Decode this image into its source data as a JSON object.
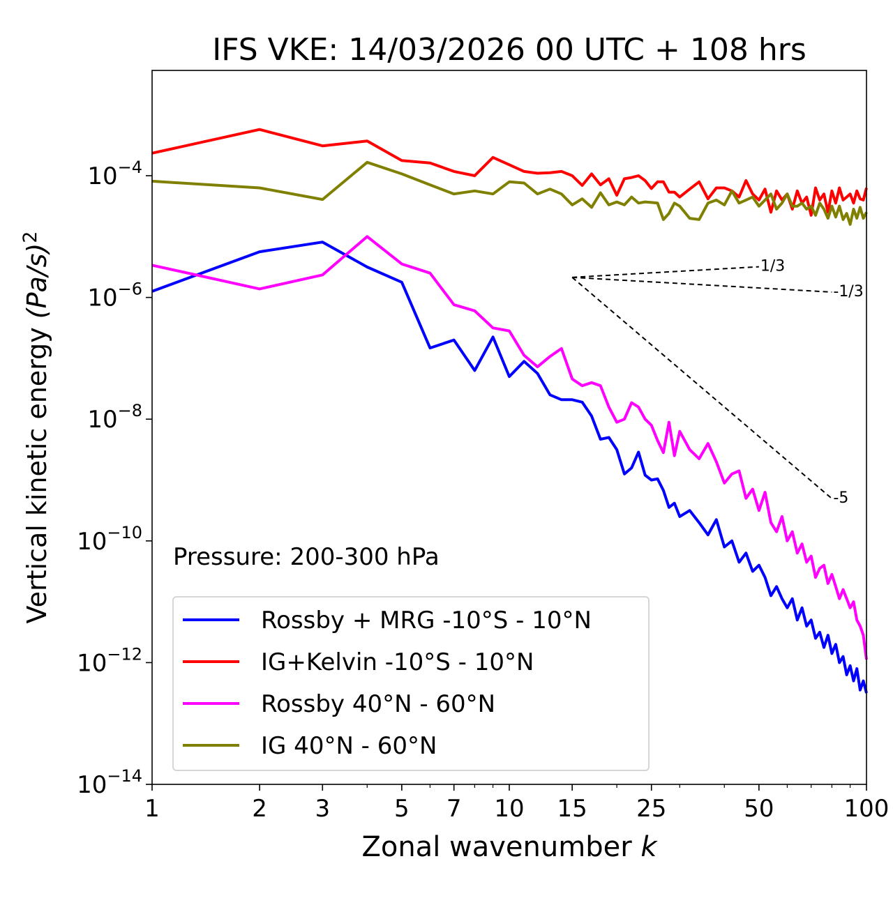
{
  "chart_data": {
    "type": "line",
    "title": "IFS VKE: 14/03/2026 00 UTC + 108 hrs",
    "xlabel": "Zonal wavenumber",
    "xlabel_var": "k",
    "ylabel": "Vertical kinetic energy",
    "ylabel_units": "(Pa/s)",
    "ylabel_power": "2",
    "xscale": "log",
    "yscale": "log",
    "xlim": [
      1,
      100
    ],
    "ylim_log10": [
      -14,
      -2.27
    ],
    "xticks": [
      1,
      2,
      3,
      5,
      7,
      10,
      15,
      25,
      50,
      100
    ],
    "xtick_labels": [
      "1",
      "2",
      "3",
      "5",
      "7",
      "10",
      "15",
      "25",
      "50",
      "100"
    ],
    "yticks_log10": [
      -14,
      -12,
      -10,
      -8,
      -6,
      -4
    ],
    "ytick_base": "10",
    "ytick_exponents": [
      "−14",
      "−12",
      "−10",
      "−8",
      "−6",
      "−4"
    ],
    "annotation": "Pressure: 200-300 hPa",
    "legend_placement": "lower-left",
    "x": [
      1,
      2,
      3,
      4,
      5,
      6,
      7,
      8,
      9,
      10,
      11,
      12,
      13,
      14,
      15,
      16,
      17,
      18,
      19,
      20,
      21,
      22,
      23,
      24,
      25,
      26,
      27,
      28,
      29,
      30,
      32,
      34,
      36,
      38,
      40,
      42,
      44,
      46,
      48,
      50,
      52,
      54,
      56,
      58,
      60,
      62,
      64,
      66,
      68,
      70,
      72,
      74,
      76,
      78,
      80,
      82,
      84,
      86,
      88,
      90,
      92,
      94,
      96,
      98,
      100
    ],
    "series": [
      {
        "name": "Rossby + MRG -10°S - 10°N",
        "color": "#0000ff",
        "log10_values": [
          -5.9,
          -5.25,
          -5.09,
          -5.5,
          -5.75,
          -6.83,
          -6.7,
          -7.2,
          -6.65,
          -7.3,
          -7.05,
          -7.25,
          -7.6,
          -7.68,
          -7.68,
          -7.72,
          -7.95,
          -8.33,
          -8.3,
          -8.5,
          -8.9,
          -8.8,
          -8.54,
          -8.92,
          -9.0,
          -8.98,
          -9.17,
          -9.45,
          -9.38,
          -9.6,
          -9.5,
          -9.7,
          -9.9,
          -9.65,
          -10.1,
          -10.0,
          -10.35,
          -10.2,
          -10.5,
          -10.4,
          -10.6,
          -10.9,
          -10.75,
          -10.95,
          -11.1,
          -10.95,
          -11.3,
          -11.1,
          -11.4,
          -11.3,
          -11.6,
          -11.5,
          -11.75,
          -11.55,
          -11.85,
          -11.7,
          -12.0,
          -11.9,
          -12.2,
          -12.05,
          -12.3,
          -12.1,
          -12.45,
          -12.3,
          -12.5
        ]
      },
      {
        "name": "IG+Kelvin -10°S - 10°N",
        "color": "#ff0000",
        "log10_values": [
          -3.63,
          -3.24,
          -3.51,
          -3.43,
          -3.75,
          -3.79,
          -3.93,
          -4.0,
          -3.7,
          -3.82,
          -3.93,
          -3.96,
          -3.95,
          -3.93,
          -4.0,
          -4.16,
          -3.97,
          -4.15,
          -4.05,
          -4.32,
          -4.05,
          -4.03,
          -4.0,
          -4.08,
          -4.21,
          -4.1,
          -4.1,
          -4.27,
          -4.27,
          -4.35,
          -4.22,
          -4.1,
          -4.38,
          -4.2,
          -4.2,
          -4.25,
          -4.35,
          -4.08,
          -4.3,
          -4.4,
          -4.22,
          -4.6,
          -4.25,
          -4.4,
          -4.3,
          -4.55,
          -4.25,
          -4.45,
          -4.35,
          -4.65,
          -4.2,
          -4.4,
          -4.3,
          -4.6,
          -4.25,
          -4.45,
          -4.2,
          -4.4,
          -4.35,
          -4.3,
          -4.45,
          -4.25,
          -4.38,
          -4.4,
          -4.2
        ]
      },
      {
        "name": "Rossby 40°N - 60°N",
        "color": "#ff00ff",
        "log10_values": [
          -5.47,
          -5.86,
          -5.63,
          -5.0,
          -5.45,
          -5.6,
          -6.12,
          -6.22,
          -6.5,
          -6.55,
          -6.95,
          -7.14,
          -6.97,
          -6.84,
          -7.34,
          -7.45,
          -7.4,
          -7.45,
          -7.8,
          -8.05,
          -8.0,
          -7.73,
          -7.8,
          -8.0,
          -8.1,
          -8.35,
          -8.55,
          -8.05,
          -8.6,
          -8.2,
          -8.5,
          -8.65,
          -8.4,
          -8.7,
          -9.05,
          -8.9,
          -8.85,
          -9.3,
          -9.15,
          -9.5,
          -9.2,
          -9.7,
          -9.85,
          -9.6,
          -10.0,
          -9.85,
          -10.2,
          -10.05,
          -10.35,
          -10.25,
          -10.6,
          -10.45,
          -10.4,
          -10.7,
          -10.55,
          -10.75,
          -10.95,
          -10.8,
          -10.95,
          -11.1,
          -11.0,
          -11.3,
          -11.4,
          -11.55,
          -11.95
        ]
      },
      {
        "name": "IG 40°N - 60°N",
        "color": "#808000",
        "log10_values": [
          -4.09,
          -4.2,
          -4.39,
          -3.78,
          -3.97,
          -4.15,
          -4.3,
          -4.25,
          -4.3,
          -4.1,
          -4.12,
          -4.3,
          -4.22,
          -4.3,
          -4.48,
          -4.38,
          -4.52,
          -4.28,
          -4.48,
          -4.43,
          -4.48,
          -4.35,
          -4.45,
          -4.43,
          -4.44,
          -4.45,
          -4.72,
          -4.62,
          -4.45,
          -4.5,
          -4.7,
          -4.72,
          -4.45,
          -4.4,
          -4.48,
          -4.25,
          -4.45,
          -4.4,
          -4.35,
          -4.5,
          -4.4,
          -4.3,
          -4.55,
          -4.45,
          -4.3,
          -4.5,
          -4.5,
          -4.45,
          -4.55,
          -4.5,
          -4.65,
          -4.45,
          -4.55,
          -4.7,
          -4.5,
          -4.68,
          -4.5,
          -4.72,
          -4.62,
          -4.8,
          -4.55,
          -4.7,
          -4.52,
          -4.7,
          -4.6
        ]
      }
    ],
    "reference_slopes": [
      {
        "label": "1/3",
        "slope": 0.3333,
        "k_start": 15,
        "k_end": 50,
        "log10_start": -5.67
      },
      {
        "label": "-1/3",
        "slope": -0.3333,
        "k_start": 15,
        "k_end": 80,
        "log10_start": -5.67
      },
      {
        "label": "-5",
        "slope": -5,
        "k_start": 15,
        "k_end": 80,
        "log10_start": -5.67
      }
    ]
  }
}
